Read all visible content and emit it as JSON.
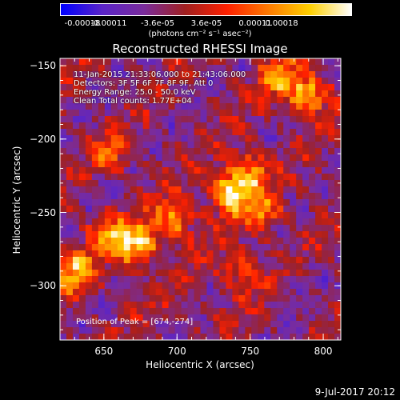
{
  "colorbar": {
    "ticks": [
      "-0.00018",
      "-0.00011",
      "-3.6e-05",
      "3.6e-05",
      "0.00011",
      "0.00018"
    ],
    "unit": "(photons cm⁻² s⁻¹ asec⁻²)",
    "range": [
      -0.00018,
      0.00018
    ],
    "colors": [
      "#0000ff",
      "#5a24c8",
      "#7a2c9c",
      "#a02020",
      "#ff2000",
      "#ff7a00",
      "#ffd000",
      "#ffffff"
    ]
  },
  "chart_data": {
    "type": "heatmap",
    "title": "Reconstructed RHESSI Image",
    "xlabel": "Heliocentric X (arcsec)",
    "ylabel": "Heliocentric Y (arcsec)",
    "xlim": [
      620,
      812
    ],
    "ylim": [
      -337,
      -145
    ],
    "xticks": [
      650,
      700,
      750,
      800
    ],
    "yticks": [
      -150,
      -200,
      -250,
      -300
    ],
    "peak_position": [
      674,
      -274
    ],
    "sources": [
      {
        "x": 672,
        "y": -272,
        "level": 1.0
      },
      {
        "x": 652,
        "y": -265,
        "level": 0.6
      },
      {
        "x": 630,
        "y": -290,
        "level": 0.75
      },
      {
        "x": 698,
        "y": -255,
        "level": 0.7
      },
      {
        "x": 735,
        "y": -238,
        "level": 0.9
      },
      {
        "x": 748,
        "y": -222,
        "level": 0.75
      },
      {
        "x": 760,
        "y": -250,
        "level": 0.55
      },
      {
        "x": 742,
        "y": -290,
        "level": 0.5
      },
      {
        "x": 790,
        "y": -170,
        "level": 0.85
      },
      {
        "x": 770,
        "y": -158,
        "level": 0.6
      },
      {
        "x": 655,
        "y": -210,
        "level": 0.45
      }
    ]
  },
  "info": {
    "time": "11-Jan-2015 21:33:06.000 to 21:43:06.000",
    "detectors": "Detectors: 3F 5F 6F 7F 8F 9F, Att 0",
    "energy": "Energy Range: 25.0 - 50.0 keV",
    "clean": "Clean    Total counts: 1.77E+04"
  },
  "peak_text": "Position of Peak = [674,-274]",
  "date_stamp": "9-Jul-2017 20:12"
}
